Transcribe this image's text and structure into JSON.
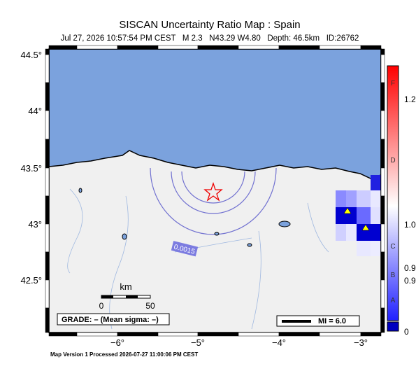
{
  "header": {
    "title": "SISCAN Uncertainty Ratio Map : Spain",
    "subtitle": "Jul 27, 2026 10:57:54 PM CEST   M 2.3   N43.29 W4.80   Depth: 46.5km   ID:26762"
  },
  "map": {
    "lat_labels": [
      "44.5°",
      "44°",
      "43.5°",
      "43°",
      "42.5°"
    ],
    "lon_labels": [
      "−6°",
      "−5°",
      "−4°",
      "−3°"
    ],
    "contour_label": "0.0015",
    "scale": {
      "unit": "km",
      "start": "0",
      "end": "50"
    },
    "grade": "GRADE: – (Mean sigma: –)",
    "mi": "MI = 6.0"
  },
  "colorbar": {
    "letters": [
      "F",
      "D",
      "C",
      "B",
      "A"
    ],
    "values": [
      "1.2",
      "1.0",
      "0.9",
      "0.9",
      "0"
    ]
  },
  "footer": "Map Version 1 Processed 2026-07-27 11:00:06 PM CEST"
}
